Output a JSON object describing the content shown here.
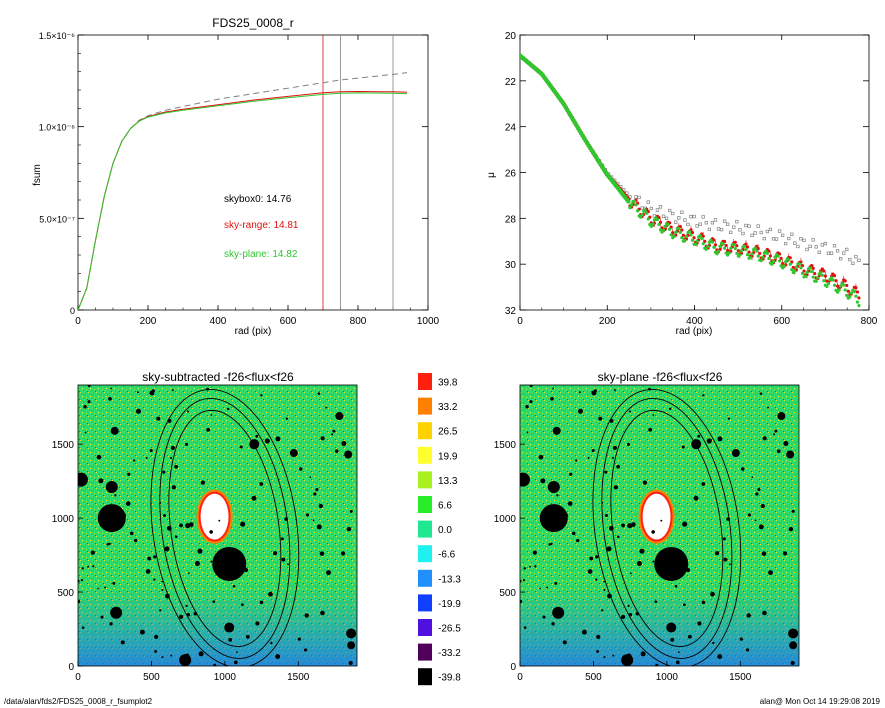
{
  "colors": {
    "black": "#000000",
    "red": "#e01010",
    "green": "#2ec82e",
    "gray": "#808080",
    "olive": "#8a8a20",
    "image_bg": "#2fd86a"
  },
  "plot1": {
    "title": "FDS25_0008_r",
    "xlabel": "rad (pix)",
    "ylabel": "fsum",
    "xticks": [
      "0",
      "200",
      "400",
      "600",
      "800",
      "1000"
    ],
    "yticks": [
      "0",
      "5.0×10⁻⁷",
      "1.0×10⁻⁶",
      "1.5×10⁻⁶"
    ],
    "annotations": [
      {
        "text": "skybox0: 14.76",
        "color": "#000000"
      },
      {
        "text": "sky-range: 14.81",
        "color": "#e01010"
      },
      {
        "text": "sky-plane: 14.82",
        "color": "#2ec82e"
      }
    ]
  },
  "plot2": {
    "xlabel": "rad (pix)",
    "ylabel": "μ",
    "xticks": [
      "0",
      "200",
      "400",
      "600",
      "800"
    ],
    "yticks": [
      "20",
      "22",
      "24",
      "26",
      "28",
      "30",
      "32"
    ]
  },
  "img1": {
    "title": "sky-subtracted -f26<flux<f26",
    "xticks": [
      "0",
      "500",
      "1000",
      "1500"
    ],
    "yticks": [
      "0",
      "500",
      "1000",
      "1500"
    ]
  },
  "img2": {
    "title": "sky-plane -f26<flux<f26",
    "xticks": [
      "0",
      "500",
      "1000",
      "1500"
    ],
    "yticks": [
      "0",
      "500",
      "1000",
      "1500"
    ]
  },
  "colorbar": {
    "levels": [
      {
        "label": "39.8",
        "color": "#ff2010"
      },
      {
        "label": "33.2",
        "color": "#ff8000"
      },
      {
        "label": "26.5",
        "color": "#ffd200"
      },
      {
        "label": "19.9",
        "color": "#ffff30"
      },
      {
        "label": "13.3",
        "color": "#a8f020"
      },
      {
        "label": "6.6",
        "color": "#28ee28"
      },
      {
        "label": "0.0",
        "color": "#20e890"
      },
      {
        "label": "-6.6",
        "color": "#20f0f0"
      },
      {
        "label": "-13.3",
        "color": "#2090ff"
      },
      {
        "label": "-19.9",
        "color": "#1040ff"
      },
      {
        "label": "-26.5",
        "color": "#5010e0"
      },
      {
        "label": "-33.2",
        "color": "#50005a"
      },
      {
        "label": "-39.8",
        "color": "#000000"
      }
    ]
  },
  "footer": {
    "left": "/data/alan/fds2/FDS25_0008_r_fsumplot2",
    "right": "alan@  Mon Oct 14 19:29:08 2019"
  },
  "chart_data": [
    {
      "type": "line",
      "title": "FDS25_0008_r",
      "xlabel": "rad (pix)",
      "ylabel": "fsum",
      "xlim": [
        0,
        1000
      ],
      "ylim": [
        0,
        1.5e-06
      ],
      "series": [
        {
          "name": "skybox0",
          "color": "#808080",
          "dashed": true,
          "x": [
            0,
            25,
            50,
            75,
            100,
            125,
            150,
            175,
            200,
            250,
            300,
            400,
            500,
            600,
            700,
            750,
            800,
            900,
            940
          ],
          "y": [
            0,
            1.2e-07,
            3.8e-07,
            6.2e-07,
            8e-07,
            9.2e-07,
            9.9e-07,
            1.035e-06,
            1.06e-06,
            1.09e-06,
            1.11e-06,
            1.15e-06,
            1.18e-06,
            1.21e-06,
            1.24e-06,
            1.255e-06,
            1.265e-06,
            1.285e-06,
            1.295e-06
          ]
        },
        {
          "name": "sky-range",
          "color": "#e01010",
          "dashed": false,
          "x": [
            0,
            25,
            50,
            75,
            100,
            125,
            150,
            175,
            200,
            250,
            300,
            400,
            500,
            600,
            700,
            750,
            800,
            900,
            940
          ],
          "y": [
            0,
            1.2e-07,
            3.8e-07,
            6.2e-07,
            8e-07,
            9.2e-07,
            9.9e-07,
            1.032e-06,
            1.055e-06,
            1.08e-06,
            1.095e-06,
            1.12e-06,
            1.145e-06,
            1.165e-06,
            1.185e-06,
            1.19e-06,
            1.192e-06,
            1.19e-06,
            1.188e-06
          ]
        },
        {
          "name": "sky-plane",
          "color": "#2ec82e",
          "dashed": false,
          "x": [
            0,
            25,
            50,
            75,
            100,
            125,
            150,
            175,
            200,
            250,
            300,
            400,
            500,
            600,
            700,
            750,
            800,
            900,
            940
          ],
          "y": [
            0,
            1.2e-07,
            3.8e-07,
            6.2e-07,
            8e-07,
            9.2e-07,
            9.9e-07,
            1.03e-06,
            1.052e-06,
            1.075e-06,
            1.09e-06,
            1.114e-06,
            1.138e-06,
            1.158e-06,
            1.176e-06,
            1.182e-06,
            1.184e-06,
            1.182e-06,
            1.18e-06
          ]
        }
      ],
      "vlines": [
        {
          "x": 700,
          "color": "#e01010"
        },
        {
          "x": 750,
          "color": "#808080"
        },
        {
          "x": 900,
          "color": "#808080"
        }
      ]
    },
    {
      "type": "scatter",
      "xlabel": "rad (pix)",
      "ylabel": "μ",
      "xlim": [
        0,
        800
      ],
      "ylim": [
        32,
        20
      ],
      "series": [
        {
          "name": "skybox0",
          "color": "#808080",
          "x": [
            0,
            50,
            100,
            150,
            200,
            250,
            300,
            350,
            400,
            450,
            500,
            550,
            600,
            650,
            700,
            750,
            780
          ],
          "y": [
            20.9,
            21.7,
            23.0,
            24.6,
            26.0,
            27.0,
            27.6,
            27.9,
            28.1,
            28.3,
            28.4,
            28.6,
            28.8,
            29.1,
            29.3,
            29.6,
            30.0
          ]
        },
        {
          "name": "sky-range",
          "color": "#e01010",
          "x": [
            0,
            50,
            100,
            150,
            200,
            250,
            300,
            350,
            400,
            450,
            500,
            550,
            600,
            650,
            700,
            750,
            780
          ],
          "y": [
            20.9,
            21.7,
            23.0,
            24.6,
            26.1,
            27.2,
            28.0,
            28.5,
            28.8,
            29.2,
            29.3,
            29.5,
            29.8,
            30.2,
            30.5,
            31.0,
            31.4
          ]
        },
        {
          "name": "sky-plane",
          "color": "#2ec82e",
          "x": [
            0,
            50,
            100,
            150,
            200,
            250,
            300,
            350,
            400,
            450,
            500,
            550,
            600,
            650,
            700,
            750,
            780
          ],
          "y": [
            20.9,
            21.7,
            23.0,
            24.6,
            26.1,
            27.3,
            28.1,
            28.6,
            28.9,
            29.3,
            29.4,
            29.6,
            29.9,
            30.3,
            30.7,
            31.2,
            31.6
          ]
        }
      ]
    },
    {
      "type": "heatmap",
      "title": "sky-subtracted -f26<flux<f26",
      "xlim": [
        0,
        1900
      ],
      "ylim": [
        0,
        1900
      ]
    },
    {
      "type": "heatmap",
      "title": "sky-plane -f26<flux<f26",
      "xlim": [
        0,
        1900
      ],
      "ylim": [
        0,
        1900
      ]
    }
  ]
}
